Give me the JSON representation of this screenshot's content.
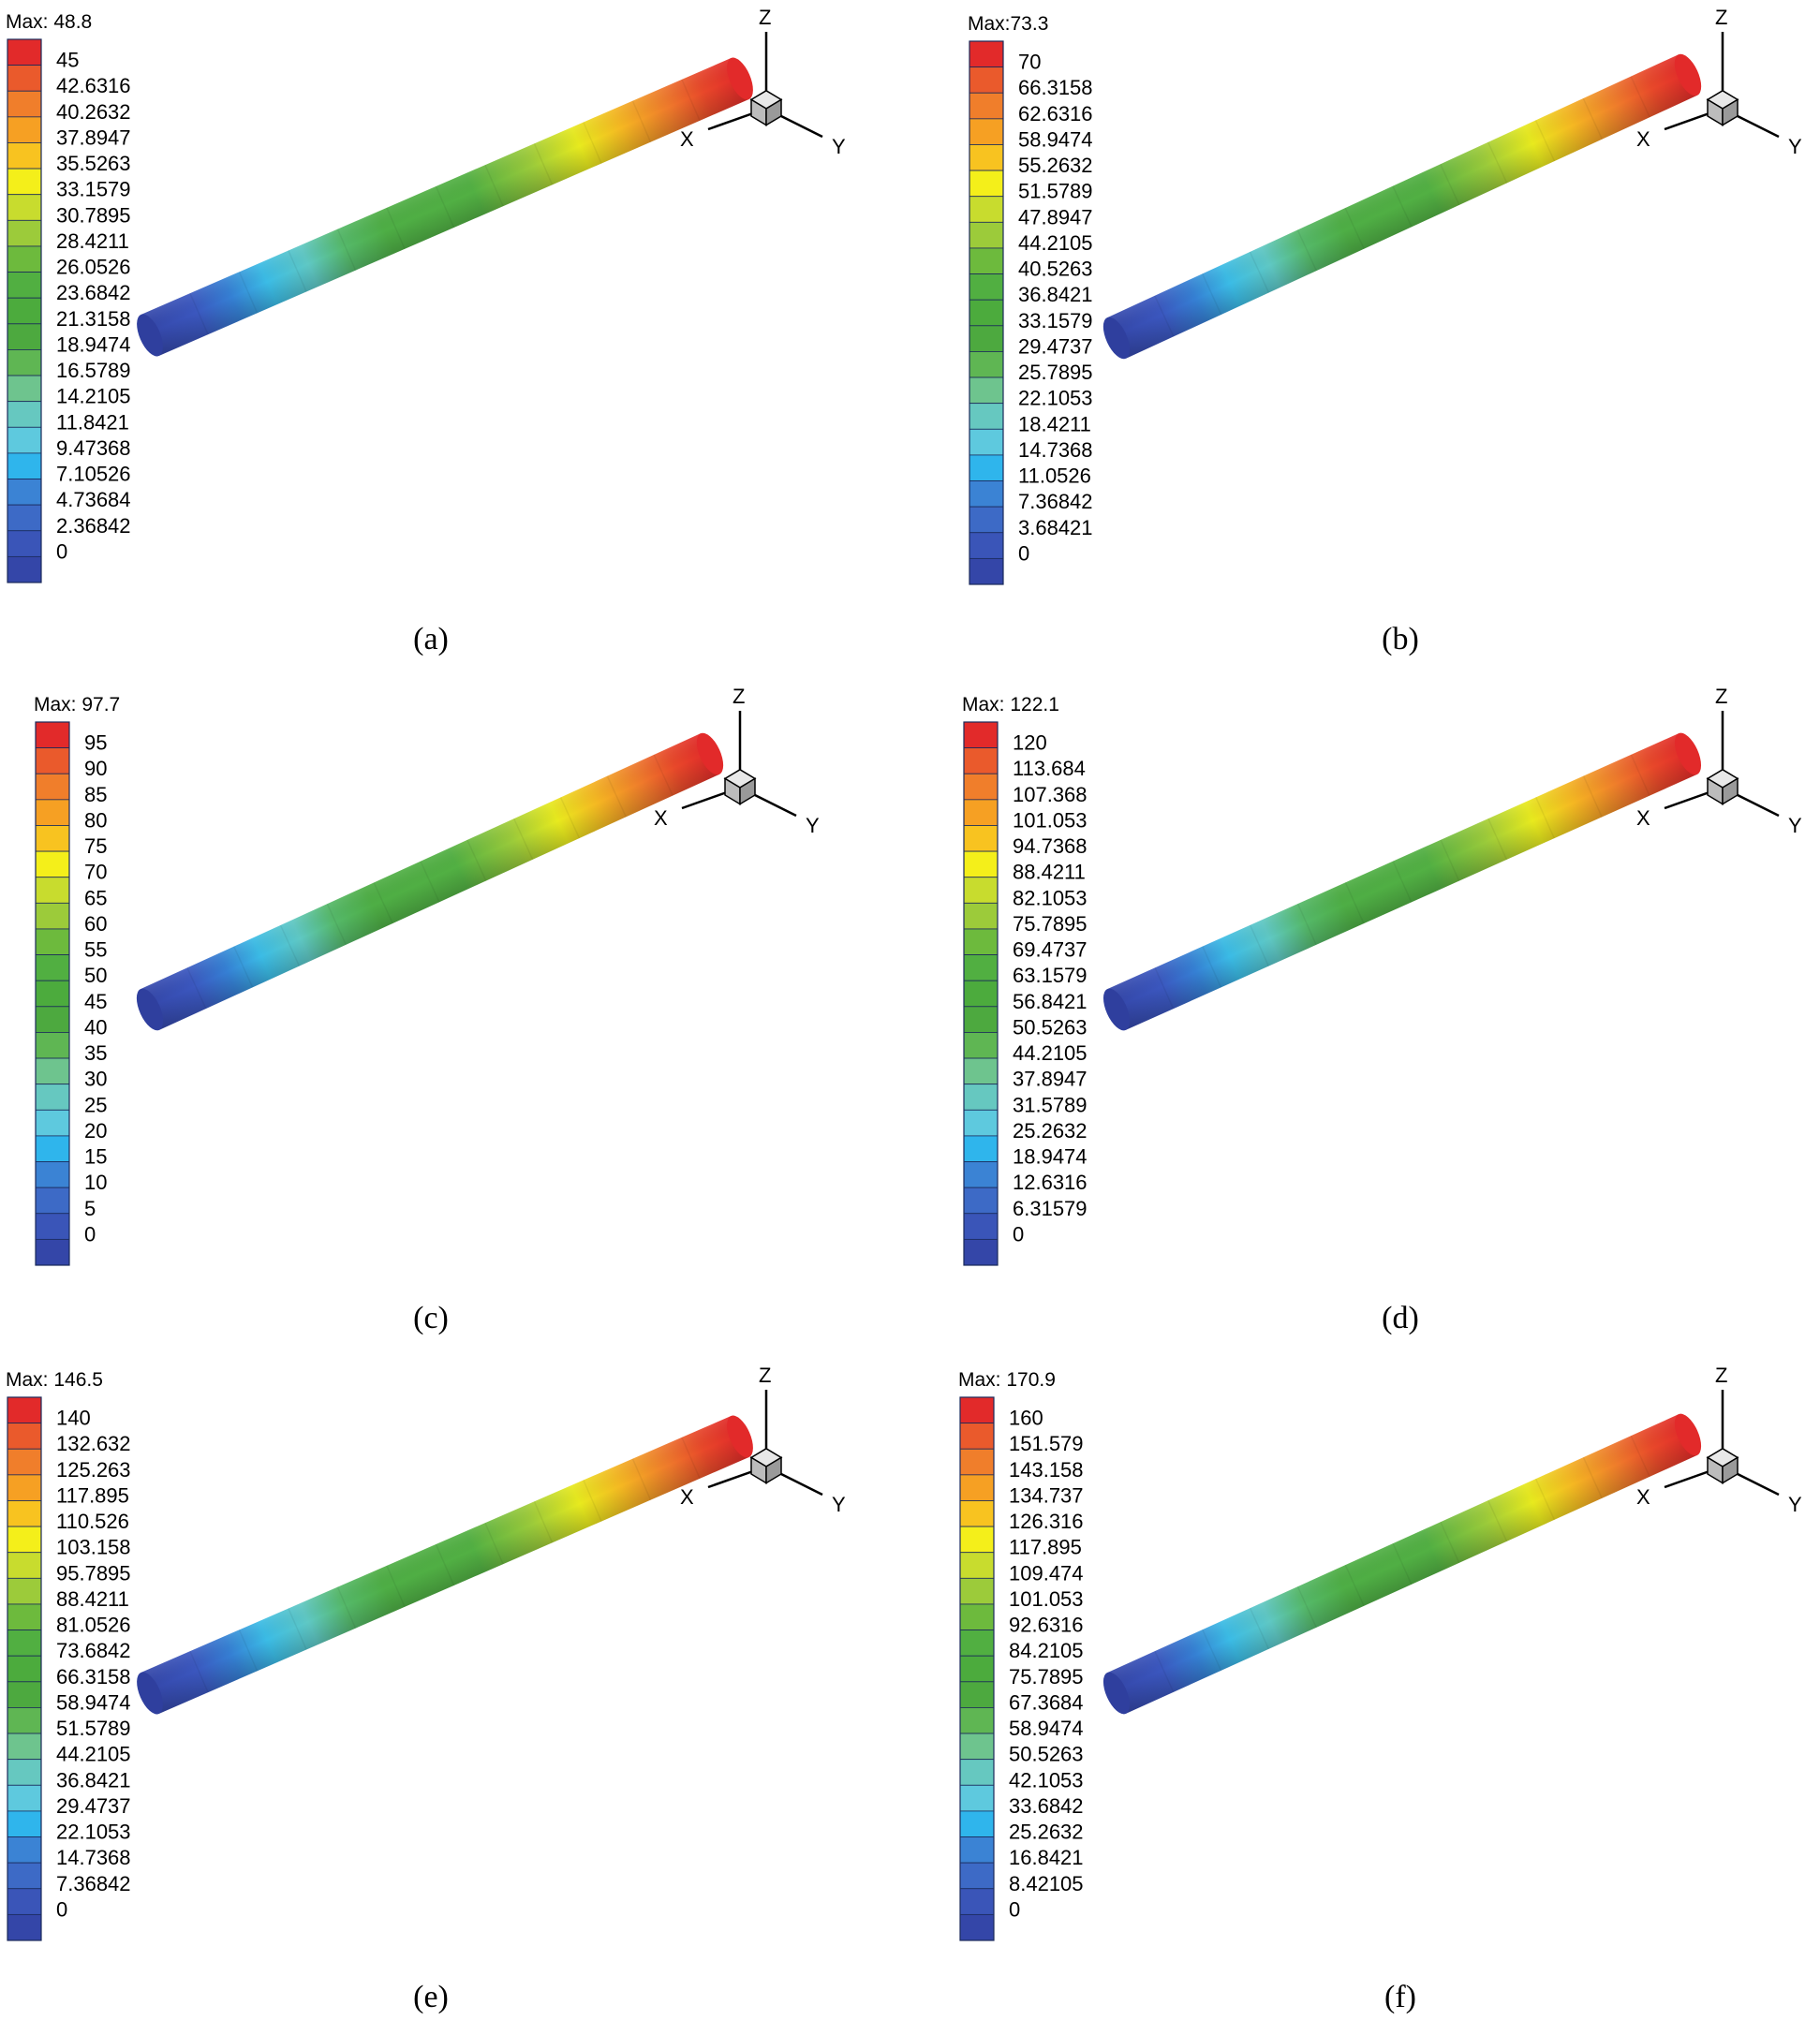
{
  "colors": [
    "#3446a8",
    "#3a55b8",
    "#3d6ac6",
    "#3b83d4",
    "#2fb5ec",
    "#5ec9de",
    "#66c8c0",
    "#6ec48e",
    "#5fb653",
    "#4da93f",
    "#4cab3d",
    "#51af41",
    "#6dba3d",
    "#9ccb3a",
    "#c8dc2e",
    "#f4ef1a",
    "#f8c320",
    "#f6a023",
    "#f07e2b",
    "#ea5a2c",
    "#e22a2a"
  ],
  "panels": [
    {
      "id": "a",
      "caption": "(a)",
      "max_label": "Max: 48.8",
      "ticks": [
        "45",
        "42.6316",
        "40.2632",
        "37.8947",
        "35.5263",
        "33.1579",
        "30.7895",
        "28.4211",
        "26.0526",
        "23.6842",
        "21.3158",
        "18.9474",
        "16.5789",
        "14.2105",
        "11.8421",
        "9.47368",
        "7.10526",
        "4.73684",
        "2.36842",
        "0"
      ],
      "axes": {
        "x": "X",
        "y": "Y",
        "z": "Z"
      }
    },
    {
      "id": "b",
      "caption": "(b)",
      "max_label": "Max:73.3",
      "ticks": [
        "70",
        "66.3158",
        "62.6316",
        "58.9474",
        "55.2632",
        "51.5789",
        "47.8947",
        "44.2105",
        "40.5263",
        "36.8421",
        "33.1579",
        "29.4737",
        "25.7895",
        "22.1053",
        "18.4211",
        "14.7368",
        "11.0526",
        "7.36842",
        "3.68421",
        "0"
      ],
      "axes": {
        "x": "X",
        "y": "Y",
        "z": "Z"
      }
    },
    {
      "id": "c",
      "caption": "(c)",
      "max_label": "Max: 97.7",
      "ticks": [
        "95",
        "90",
        "85",
        "80",
        "75",
        "70",
        "65",
        "60",
        "55",
        "50",
        "45",
        "40",
        "35",
        "30",
        "25",
        "20",
        "15",
        "10",
        "5",
        "0"
      ],
      "axes": {
        "x": "X",
        "y": "Y",
        "z": "Z"
      }
    },
    {
      "id": "d",
      "caption": "(d)",
      "max_label": "Max: 122.1",
      "ticks": [
        "120",
        "113.684",
        "107.368",
        "101.053",
        "94.7368",
        "88.4211",
        "82.1053",
        "75.7895",
        "69.4737",
        "63.1579",
        "56.8421",
        "50.5263",
        "44.2105",
        "37.8947",
        "31.5789",
        "25.2632",
        "18.9474",
        "12.6316",
        "6.31579",
        "0"
      ],
      "axes": {
        "x": "X",
        "y": "Y",
        "z": "Z"
      }
    },
    {
      "id": "e",
      "caption": "(e)",
      "max_label": "Max: 146.5",
      "ticks": [
        "140",
        "132.632",
        "125.263",
        "117.895",
        "110.526",
        "103.158",
        "95.7895",
        "88.4211",
        "81.0526",
        "73.6842",
        "66.3158",
        "58.9474",
        "51.5789",
        "44.2105",
        "36.8421",
        "29.4737",
        "22.1053",
        "14.7368",
        "7.36842",
        "0"
      ],
      "axes": {
        "x": "X",
        "y": "Y",
        "z": "Z"
      }
    },
    {
      "id": "f",
      "caption": "(f)",
      "max_label": "Max: 170.9",
      "ticks": [
        "160",
        "151.579",
        "143.158",
        "134.737",
        "126.316",
        "117.895",
        "109.474",
        "101.053",
        "92.6316",
        "84.2105",
        "75.7895",
        "67.3684",
        "58.9474",
        "50.5263",
        "42.1053",
        "33.6842",
        "25.2632",
        "16.8421",
        "8.42105",
        "0"
      ],
      "axes": {
        "x": "X",
        "y": "Y",
        "z": "Z"
      }
    }
  ]
}
